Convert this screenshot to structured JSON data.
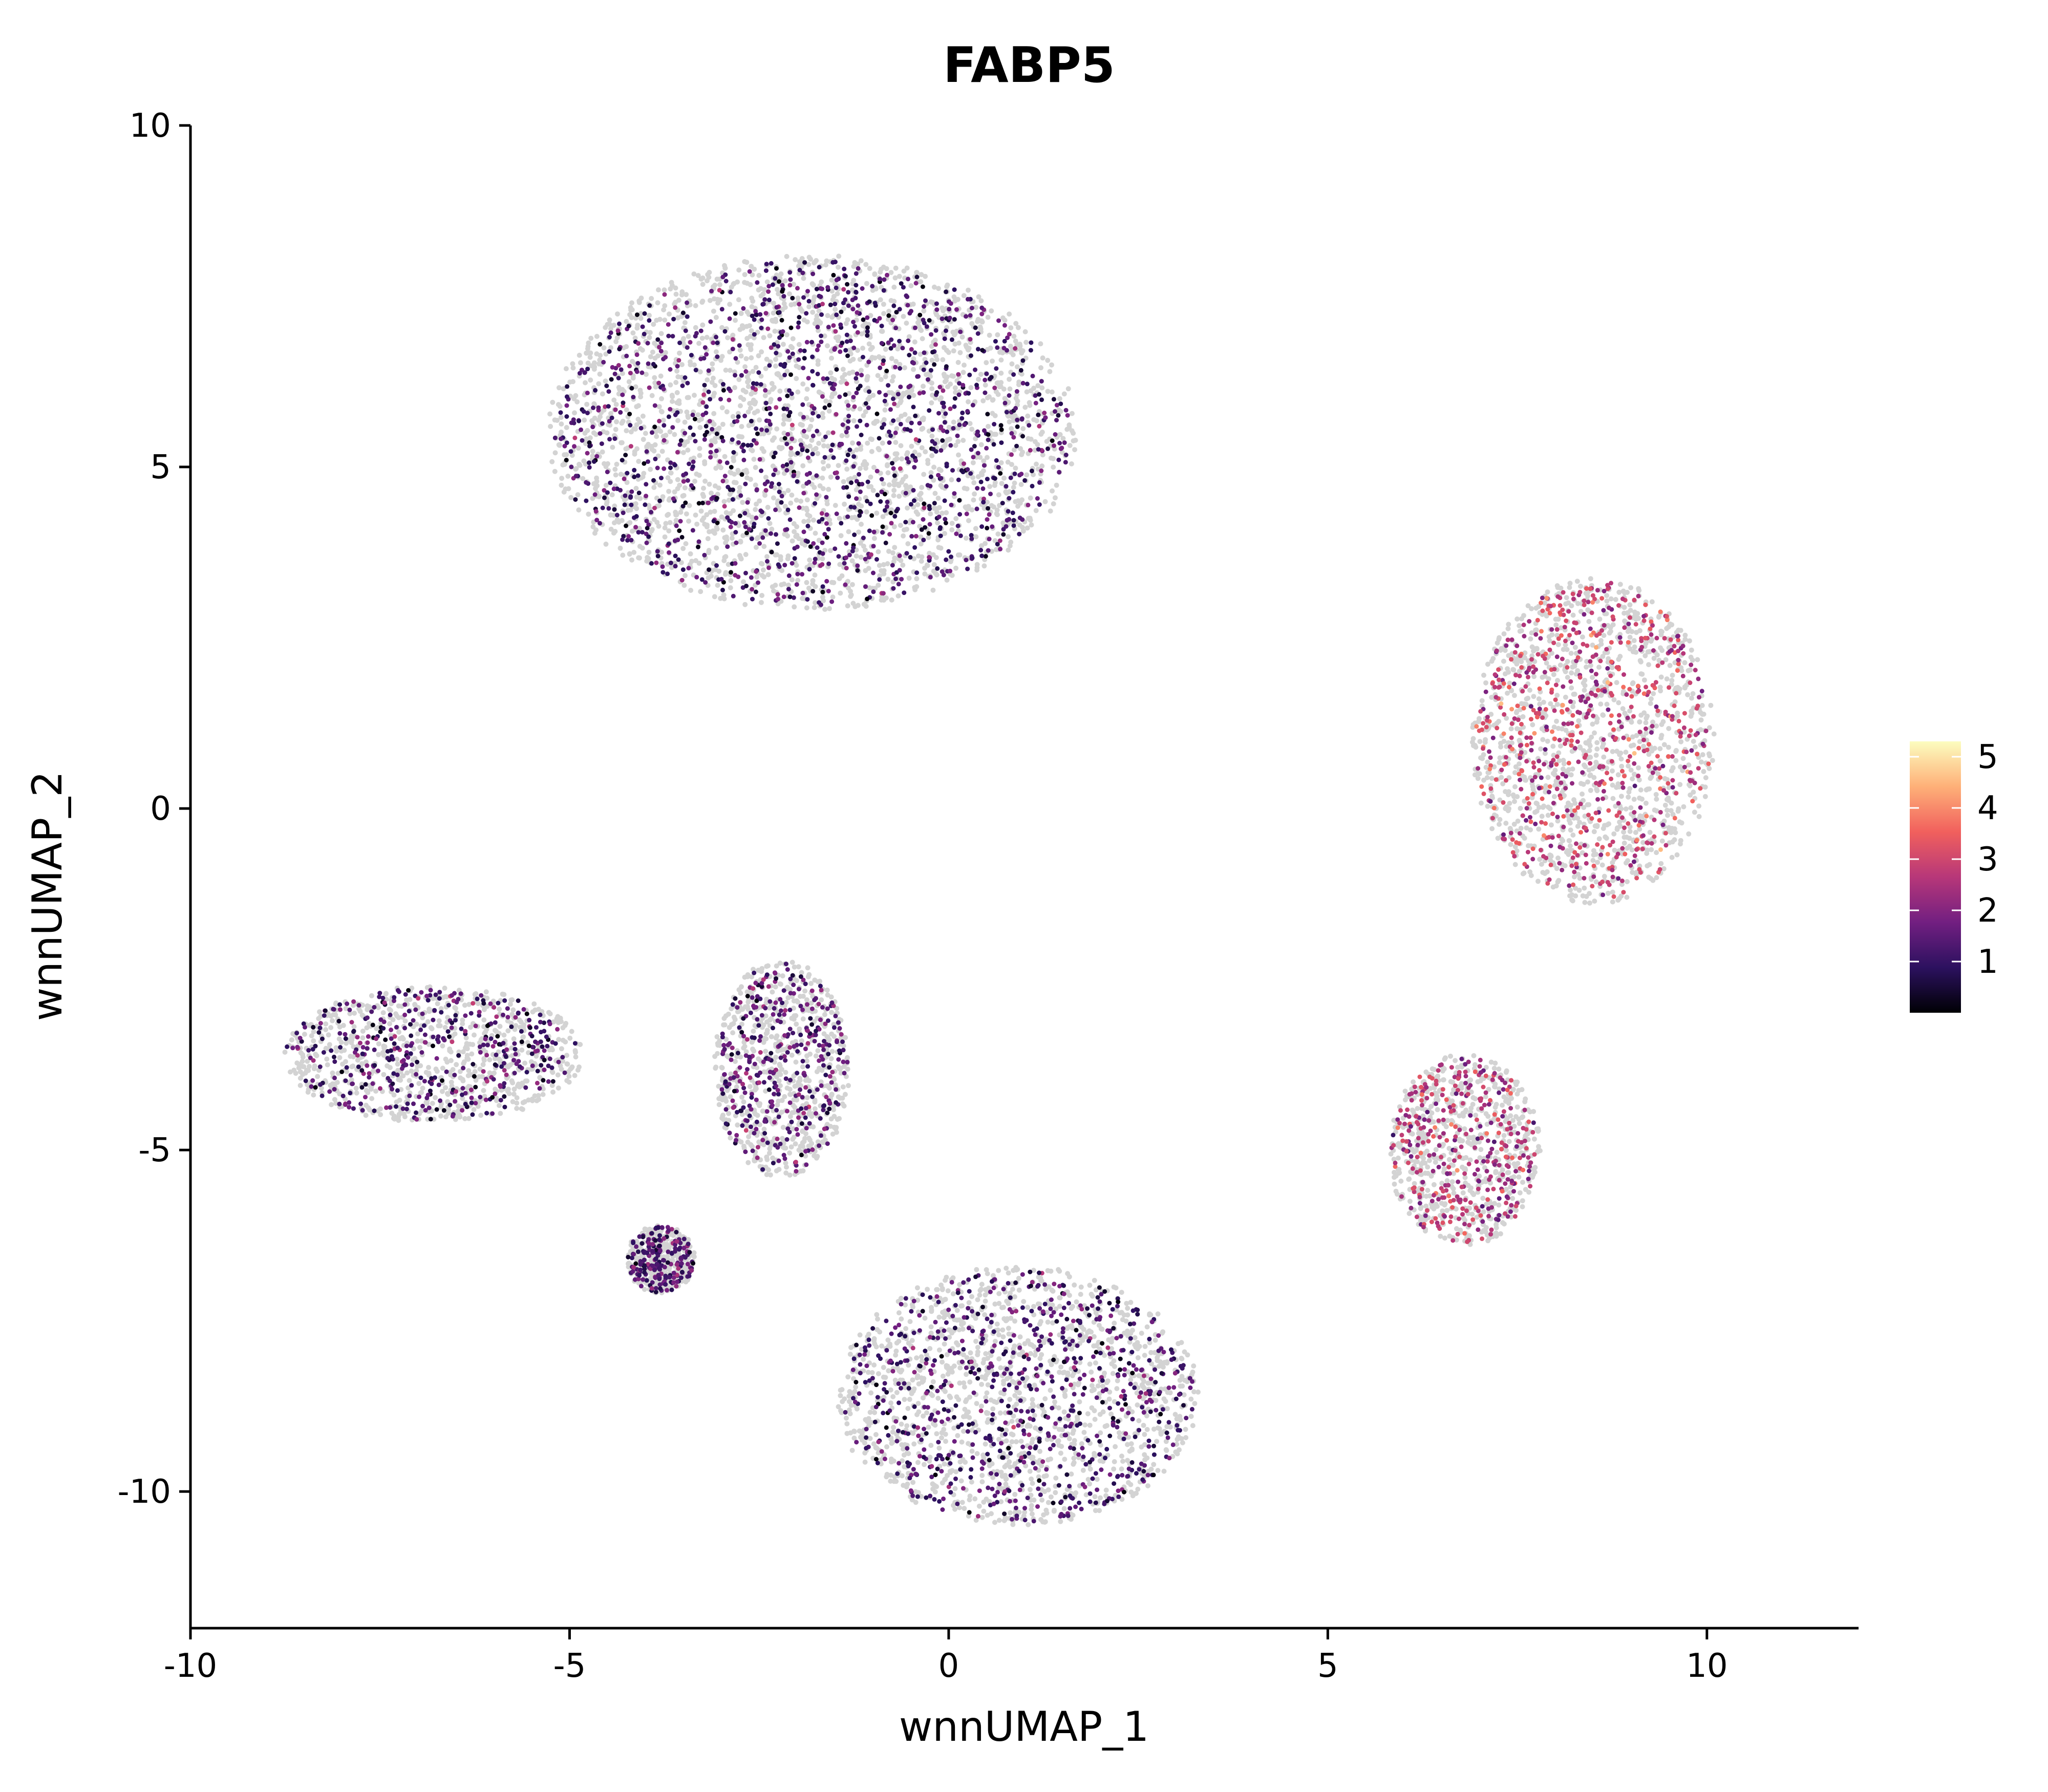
{
  "chart_data": {
    "type": "scatter",
    "title": "FABP5",
    "xlabel": "wnnUMAP_1",
    "ylabel": "wnnUMAP_2",
    "xlim": [
      -10,
      12
    ],
    "ylim": [
      -12,
      10
    ],
    "xticks": [
      -10,
      -5,
      0,
      5,
      10
    ],
    "yticks": [
      10,
      5,
      0,
      -5,
      -10
    ],
    "xtick_labels": [
      "-10",
      "-5",
      "0",
      "5",
      "10"
    ],
    "ytick_labels": [
      "10",
      "5",
      "0",
      "-5",
      "-10"
    ],
    "grid": false,
    "background_color": "#d3d3d3",
    "colorscale": {
      "name": "magma",
      "range": [
        0,
        5.3
      ],
      "ticks": [
        1,
        2,
        3,
        4,
        5
      ],
      "tick_labels": [
        "1",
        "2",
        "3",
        "4",
        "5"
      ],
      "colors": [
        "#000004",
        "#2c115f",
        "#721f81",
        "#b73779",
        "#f1605d",
        "#feb078",
        "#fcfdbf"
      ],
      "legend_position": "right"
    },
    "clusters": [
      {
        "region": "top-large",
        "cx": -1.8,
        "cy": 5.5,
        "rx": 3.5,
        "ry": 2.6,
        "expr_mean": 1.2
      },
      {
        "region": "left-arm",
        "cx": -6.8,
        "cy": -3.6,
        "rx": 2.0,
        "ry": 1.0,
        "expr_mean": 1.2
      },
      {
        "region": "center-column",
        "cx": -2.2,
        "cy": -3.8,
        "rx": 0.9,
        "ry": 1.6,
        "expr_mean": 1.4
      },
      {
        "region": "bottom-lobe",
        "cx": 0.9,
        "cy": -8.6,
        "rx": 2.4,
        "ry": 1.9,
        "expr_mean": 1.2
      },
      {
        "region": "small-island",
        "cx": -3.8,
        "cy": -6.6,
        "rx": 0.45,
        "ry": 0.5,
        "expr_mean": 1.3
      },
      {
        "region": "right-top",
        "cx": 8.5,
        "cy": 1.0,
        "rx": 1.6,
        "ry": 2.4,
        "expr_mean": 2.8
      },
      {
        "region": "right-bottom",
        "cx": 6.8,
        "cy": -5.0,
        "rx": 1.0,
        "ry": 1.4,
        "expr_mean": 2.6
      }
    ]
  }
}
